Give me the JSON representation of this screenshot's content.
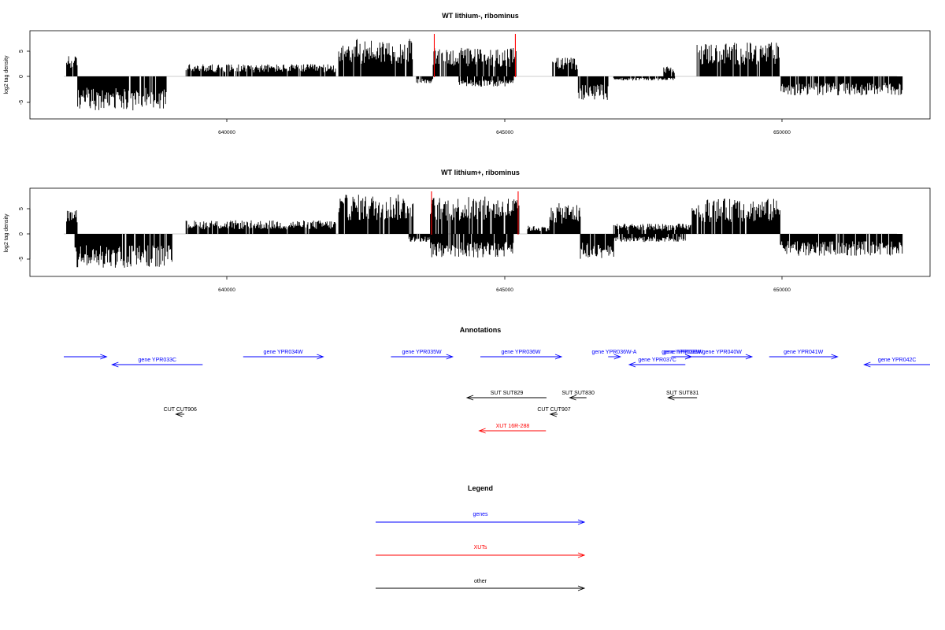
{
  "panels": [
    {
      "title": "WT lithium-, ribominus",
      "ylabel": "log2 tag density",
      "yticks": [
        "-5",
        "0",
        "5"
      ],
      "xticks": [
        "640000",
        "645000",
        "650000"
      ]
    },
    {
      "title": "WT lithium+, ribominus",
      "ylabel": "log2 tag density",
      "yticks": [
        "-5",
        "0",
        "5"
      ],
      "xticks": [
        "640000",
        "645000",
        "650000"
      ]
    }
  ],
  "annotations_title": "Annotations",
  "legend_title": "Legend",
  "legend_items": [
    {
      "label": "genes",
      "color": "#0000ff"
    },
    {
      "label": "XUTs",
      "color": "#ff0000"
    },
    {
      "label": "other",
      "color": "#000000"
    }
  ],
  "chart_data": [
    {
      "type": "bar",
      "title": "WT lithium-, ribominus",
      "ylabel": "log2 tag density",
      "xlim": [
        637100,
        652300
      ],
      "ylim": [
        -8.5,
        9
      ],
      "segments": [
        {
          "strand": "+",
          "start": 637150,
          "end": 637350,
          "level": 3
        },
        {
          "strand": "-",
          "start": 637350,
          "end": 638950,
          "level": -5
        },
        {
          "strand": "+",
          "start": 639300,
          "end": 642000,
          "level": 1.8
        },
        {
          "strand": "+",
          "start": 642050,
          "end": 643400,
          "level": 5.5
        },
        {
          "strand": "-",
          "start": 643450,
          "end": 643750,
          "level": -1
        },
        {
          "strand": "+",
          "start": 643750,
          "end": 645250,
          "level": 4.2
        },
        {
          "strand": "-",
          "start": 644200,
          "end": 645200,
          "level": -1.5
        },
        {
          "strand": "+",
          "start": 645900,
          "end": 646350,
          "level": 2.8
        },
        {
          "strand": "-",
          "start": 646350,
          "end": 646900,
          "level": -3.5
        },
        {
          "strand": "-",
          "start": 647000,
          "end": 648100,
          "level": -0.6
        },
        {
          "strand": "+",
          "start": 647900,
          "end": 648100,
          "level": 1.5
        },
        {
          "strand": "+",
          "start": 648500,
          "end": 650000,
          "level": 5
        },
        {
          "strand": "-",
          "start": 650000,
          "end": 652200,
          "level": -2.8
        }
      ],
      "highlights": [
        {
          "x": 643770,
          "color": "#ff0000"
        },
        {
          "x": 645230,
          "color": "#ff0000"
        }
      ]
    },
    {
      "type": "bar",
      "title": "WT lithium+, ribominus",
      "ylabel": "log2 tag density",
      "xlim": [
        637100,
        652300
      ],
      "ylim": [
        -8.5,
        9
      ],
      "segments": [
        {
          "strand": "+",
          "start": 637150,
          "end": 637350,
          "level": 3.5
        },
        {
          "strand": "-",
          "start": 637300,
          "end": 639050,
          "level": -5
        },
        {
          "strand": "+",
          "start": 639300,
          "end": 642000,
          "level": 2
        },
        {
          "strand": "+",
          "start": 642050,
          "end": 643400,
          "level": 5.8
        },
        {
          "strand": "-",
          "start": 643300,
          "end": 643750,
          "level": -1.2
        },
        {
          "strand": "+",
          "start": 643700,
          "end": 645300,
          "level": 5.5
        },
        {
          "strand": "-",
          "start": 643700,
          "end": 645200,
          "level": -3.5
        },
        {
          "strand": "+",
          "start": 645450,
          "end": 645850,
          "level": 1.2
        },
        {
          "strand": "+",
          "start": 645850,
          "end": 646400,
          "level": 4.5
        },
        {
          "strand": "-",
          "start": 646400,
          "end": 647000,
          "level": -3.8
        },
        {
          "strand": "+",
          "start": 647000,
          "end": 648400,
          "level": 1.5
        },
        {
          "strand": "-",
          "start": 647000,
          "end": 648300,
          "level": -1.2
        },
        {
          "strand": "+",
          "start": 648400,
          "end": 650000,
          "level": 5.2
        },
        {
          "strand": "-",
          "start": 650000,
          "end": 652200,
          "level": -3.2
        }
      ],
      "highlights": [
        {
          "x": 643720,
          "color": "#ff0000"
        },
        {
          "x": 645280,
          "color": "#ff0000"
        }
      ]
    }
  ],
  "features": [
    {
      "label": "",
      "start": 637100,
      "end": 637870,
      "strand": "+",
      "color": "#0000ff",
      "row": 0
    },
    {
      "label": "gene YPR033C",
      "start": 637970,
      "end": 639600,
      "strand": "-",
      "color": "#0000ff",
      "row": 1
    },
    {
      "label": "gene YPR034W",
      "start": 640330,
      "end": 641770,
      "strand": "+",
      "color": "#0000ff",
      "row": 0
    },
    {
      "label": "gene YPR035W",
      "start": 642990,
      "end": 644100,
      "strand": "+",
      "color": "#0000ff",
      "row": 0
    },
    {
      "label": "gene YPR036W",
      "start": 644600,
      "end": 646060,
      "strand": "+",
      "color": "#0000ff",
      "row": 0
    },
    {
      "label": "gene YPR036W-A",
      "start": 646900,
      "end": 647120,
      "strand": "+",
      "color": "#0000ff",
      "row": 0
    },
    {
      "label": "gene YPR037C",
      "start": 647280,
      "end": 648290,
      "strand": "-",
      "color": "#0000ff",
      "row": 1
    },
    {
      "label": "gene YPR038W",
      "start": 648040,
      "end": 648400,
      "strand": "+",
      "color": "#0000ff",
      "row": 0
    },
    {
      "label": "gene YPR039W",
      "start": 648100,
      "end": 648400,
      "strand": "+",
      "color": "#0000ff",
      "row": 0
    },
    {
      "label": "gene YPR040W",
      "start": 648410,
      "end": 649490,
      "strand": "+",
      "color": "#0000ff",
      "row": 0
    },
    {
      "label": "gene YPR041W",
      "start": 649800,
      "end": 651030,
      "strand": "+",
      "color": "#0000ff",
      "row": 0
    },
    {
      "label": "gene YPR042C",
      "start": 651510,
      "end": 653670,
      "strand": "-",
      "color": "#0000ff",
      "row": 1
    },
    {
      "label": "SUT SUT829",
      "start": 644360,
      "end": 645790,
      "strand": "-",
      "color": "#000000",
      "row": 3
    },
    {
      "label": "SUT SUT830",
      "start": 646210,
      "end": 646510,
      "strand": "-",
      "color": "#000000",
      "row": 3
    },
    {
      "label": "SUT SUT831",
      "start": 647980,
      "end": 648500,
      "strand": "-",
      "color": "#000000",
      "row": 3
    },
    {
      "label": "CUT CUT906",
      "start": 639120,
      "end": 639270,
      "strand": "-",
      "color": "#000000",
      "row": 4
    },
    {
      "label": "CUT CUT907",
      "start": 645860,
      "end": 645990,
      "strand": "-",
      "color": "#000000",
      "row": 4
    },
    {
      "label": "XUT 16R-288",
      "start": 644580,
      "end": 645780,
      "strand": "-",
      "color": "#ff0000",
      "row": 5
    }
  ]
}
